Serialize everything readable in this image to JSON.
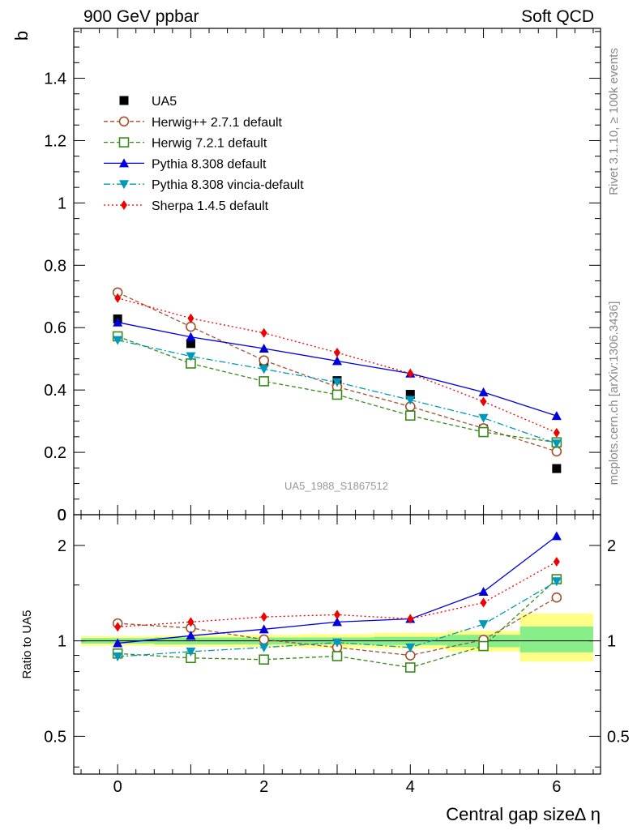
{
  "header": {
    "left_title": "900 GeV ppbar",
    "right_title": "Soft QCD"
  },
  "side_labels": {
    "rivet": "Rivet 3.1.10, ≥ 100k events",
    "source": "mcplots.cern.ch [arXiv:1306.3436]"
  },
  "analysis_tag": "UA5_1988_S1867512",
  "colors": {
    "ua5": "#000000",
    "herwig_pp": "#a0522d",
    "herwig7": "#3a8a1a",
    "pythia": "#0000dd",
    "vincia": "#0099bb",
    "sherpa": "#ee0000",
    "band_yellow": "#ffff88",
    "band_green": "#88ee88"
  },
  "chart_data": [
    {
      "type": "line",
      "panel": "main",
      "ylabel": "b",
      "xlim": [
        -0.6,
        6.6
      ],
      "ylim": [
        0,
        1.56
      ],
      "yticks": [
        "0",
        "0.2",
        "0.4",
        "0.6",
        "0.8",
        "1",
        "1.2",
        "1.4"
      ],
      "x": [
        0,
        1,
        2,
        3,
        4,
        5,
        6
      ],
      "legend_position": "top-left",
      "series": [
        {
          "key": "ua5",
          "name": "UA5",
          "marker": "square-filled",
          "line": "none",
          "values": [
            0.628,
            0.549,
            0.49,
            0.43,
            0.386,
            0.275,
            0.148
          ]
        },
        {
          "key": "herwig_pp",
          "name": "Herwig++ 2.7.1 default",
          "marker": "circle-open",
          "line": "dashed",
          "values": [
            0.713,
            0.603,
            0.495,
            0.41,
            0.347,
            0.277,
            0.203
          ]
        },
        {
          "key": "herwig7",
          "name": "Herwig 7.2.1 default",
          "marker": "square-open",
          "line": "dashed",
          "values": [
            0.572,
            0.485,
            0.428,
            0.385,
            0.318,
            0.265,
            0.232
          ]
        },
        {
          "key": "pythia",
          "name": "Pythia 8.308 default",
          "marker": "triangle-up",
          "line": "solid",
          "values": [
            0.617,
            0.57,
            0.533,
            0.493,
            0.453,
            0.393,
            0.317
          ]
        },
        {
          "key": "vincia",
          "name": "Pythia 8.308 vincia-default",
          "marker": "triangle-down",
          "line": "dashdot",
          "values": [
            0.56,
            0.508,
            0.467,
            0.425,
            0.368,
            0.31,
            0.228
          ]
        },
        {
          "key": "sherpa",
          "name": "Sherpa 1.4.5 default",
          "marker": "diamond",
          "line": "dotted",
          "values": [
            0.695,
            0.63,
            0.583,
            0.52,
            0.453,
            0.363,
            0.263
          ]
        }
      ]
    },
    {
      "type": "line",
      "panel": "ratio",
      "ylabel": "Ratio to UA5",
      "xlabel": "Central gap size∆ η",
      "xlim": [
        -0.6,
        6.6
      ],
      "ylim": [
        0.38,
        2.5
      ],
      "yscale": "log",
      "yticks": [
        "0.5",
        "1",
        "2"
      ],
      "xticks": [
        "0",
        "2",
        "4",
        "6"
      ],
      "x": [
        0,
        1,
        2,
        3,
        4,
        5,
        6
      ],
      "uncertainty_band": {
        "x_edges": [
          [
            -0.5,
            0.5
          ],
          [
            0.5,
            1.5
          ],
          [
            1.5,
            2.5
          ],
          [
            2.5,
            3.5
          ],
          [
            3.5,
            4.5
          ],
          [
            4.5,
            5.5
          ],
          [
            5.5,
            6.5
          ]
        ],
        "yellow": [
          [
            0.965,
            1.035
          ],
          [
            0.96,
            1.04
          ],
          [
            0.955,
            1.045
          ],
          [
            0.95,
            1.05
          ],
          [
            0.945,
            1.06
          ],
          [
            0.925,
            1.075
          ],
          [
            0.86,
            1.22
          ]
        ],
        "green": [
          [
            0.98,
            1.02
          ],
          [
            0.975,
            1.025
          ],
          [
            0.975,
            1.025
          ],
          [
            0.975,
            1.025
          ],
          [
            0.97,
            1.03
          ],
          [
            0.955,
            1.045
          ],
          [
            0.92,
            1.11
          ]
        ]
      },
      "series": [
        {
          "key": "herwig_pp",
          "marker": "circle-open",
          "line": "dashed",
          "values": [
            1.135,
            1.098,
            1.01,
            0.953,
            0.9,
            1.008,
            1.37
          ]
        },
        {
          "key": "herwig7",
          "marker": "square-open",
          "line": "dashed",
          "values": [
            0.912,
            0.883,
            0.873,
            0.895,
            0.824,
            0.963,
            1.565
          ]
        },
        {
          "key": "pythia",
          "marker": "triangle-up",
          "line": "solid",
          "values": [
            0.983,
            1.038,
            1.088,
            1.147,
            1.173,
            1.429,
            2.14
          ]
        },
        {
          "key": "vincia",
          "marker": "triangle-down",
          "line": "dashdot",
          "values": [
            0.892,
            0.925,
            0.953,
            0.988,
            0.953,
            1.128,
            1.54
          ]
        },
        {
          "key": "sherpa",
          "marker": "diamond",
          "line": "dotted",
          "values": [
            1.107,
            1.147,
            1.19,
            1.209,
            1.173,
            1.32,
            1.777
          ]
        }
      ]
    }
  ]
}
